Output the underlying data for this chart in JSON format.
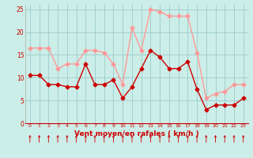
{
  "hours": [
    0,
    1,
    2,
    3,
    4,
    5,
    6,
    7,
    8,
    9,
    10,
    11,
    12,
    13,
    14,
    15,
    16,
    17,
    18,
    19,
    20,
    21,
    22,
    23
  ],
  "wind_avg": [
    10.5,
    10.5,
    8.5,
    8.5,
    8.0,
    8.0,
    13.0,
    8.5,
    8.5,
    9.5,
    5.5,
    8.0,
    12.0,
    16.0,
    14.5,
    12.0,
    12.0,
    13.5,
    7.5,
    3.0,
    4.0,
    4.0,
    4.0,
    5.5
  ],
  "wind_gust": [
    16.5,
    16.5,
    16.5,
    12.0,
    13.0,
    13.0,
    16.0,
    16.0,
    15.5,
    13.0,
    8.5,
    21.0,
    16.0,
    25.0,
    24.5,
    23.5,
    23.5,
    23.5,
    15.5,
    5.5,
    6.5,
    7.0,
    8.5,
    8.5
  ],
  "color_avg": "#cc0000",
  "color_gust": "#ff9999",
  "bg_color": "#cceee8",
  "grid_color": "#99cccc",
  "xlabel": "Vent moyen/en rafales ( km/h )",
  "xlabel_color": "#cc0000",
  "tick_color": "#cc0000",
  "ylim": [
    0,
    26
  ],
  "yticks": [
    0,
    5,
    10,
    15,
    20,
    25
  ],
  "marker_size": 2.5,
  "linewidth": 1.0,
  "arrow_color": "#cc0000"
}
